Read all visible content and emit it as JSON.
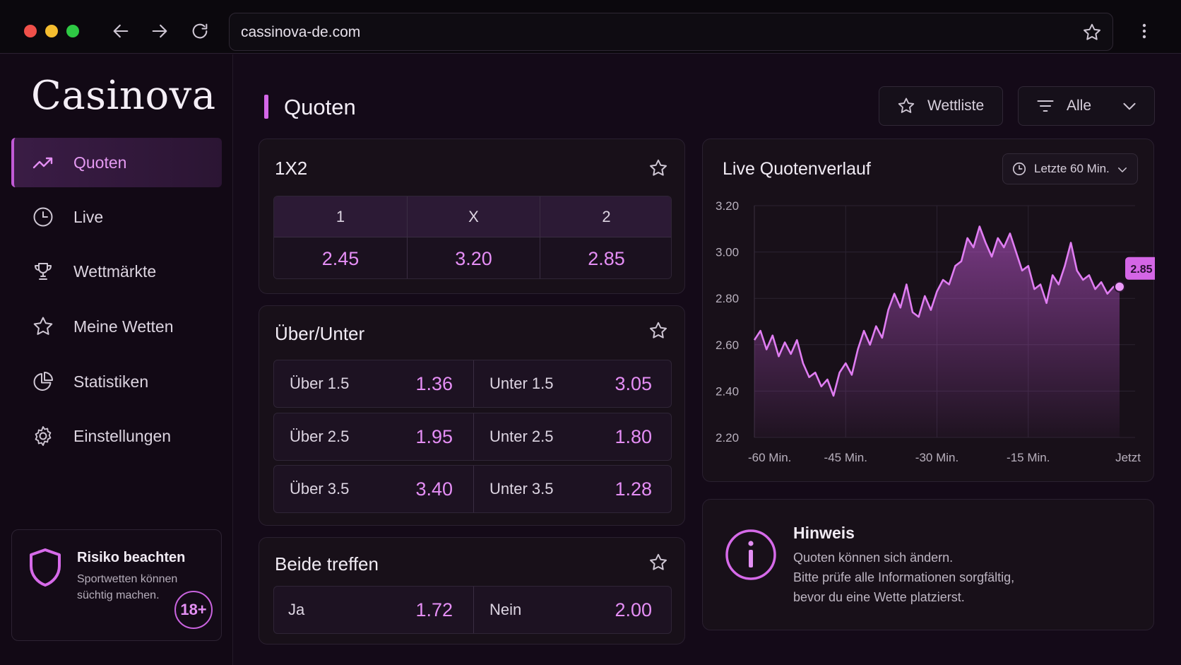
{
  "browser": {
    "url": "cassinova-de.com"
  },
  "sidebar": {
    "logo": "Casinova",
    "items": [
      {
        "label": "Quoten",
        "icon": "trending-up-icon",
        "active": true
      },
      {
        "label": "Live",
        "icon": "clock-icon",
        "active": false
      },
      {
        "label": "Wettmärkte",
        "icon": "trophy-icon",
        "active": false
      },
      {
        "label": "Meine Wetten",
        "icon": "star-icon",
        "active": false
      },
      {
        "label": "Statistiken",
        "icon": "pie-chart-icon",
        "active": false
      },
      {
        "label": "Einstellungen",
        "icon": "gear-icon",
        "active": false
      }
    ],
    "risk": {
      "title": "Risiko beachten",
      "text_line1": "Sportwetten können",
      "text_line2": "süchtig machen.",
      "age": "18+"
    }
  },
  "header": {
    "title": "Quoten",
    "watchlist_label": "Wettliste",
    "filter_label": "Alle"
  },
  "market_1x2": {
    "title": "1X2",
    "columns": [
      {
        "label": "1",
        "odd": "2.45"
      },
      {
        "label": "X",
        "odd": "3.20"
      },
      {
        "label": "2",
        "odd": "2.85"
      }
    ]
  },
  "market_ou": {
    "title": "Über/Unter",
    "rows": [
      {
        "over_label": "Über 1.5",
        "over_odd": "1.36",
        "under_label": "Unter 1.5",
        "under_odd": "3.05"
      },
      {
        "over_label": "Über 2.5",
        "over_odd": "1.95",
        "under_label": "Unter 2.5",
        "under_odd": "1.80"
      },
      {
        "over_label": "Über 3.5",
        "over_odd": "3.40",
        "under_label": "Unter 3.5",
        "under_odd": "1.28"
      }
    ]
  },
  "market_btts": {
    "title": "Beide treffen",
    "yes_label": "Ja",
    "yes_odd": "1.72",
    "no_label": "Nein",
    "no_odd": "2.00"
  },
  "chart": {
    "title": "Live Quotenverlauf",
    "range_label": "Letzte 60 Min.",
    "current_label": "2.85"
  },
  "chart_data": {
    "type": "area",
    "title": "Live Quotenverlauf",
    "x_ticks": [
      "-60 Min.",
      "-45 Min.",
      "-30 Min.",
      "-15 Min.",
      "Jetzt"
    ],
    "y_ticks": [
      "3.20",
      "3.00",
      "2.80",
      "2.60",
      "2.40",
      "2.20"
    ],
    "ylim": [
      2.2,
      3.2
    ],
    "xlim": [
      -60,
      0
    ],
    "grid": true,
    "x": [
      -60,
      -59,
      -58,
      -57,
      -56,
      -55,
      -54,
      -53,
      -52,
      -51,
      -50,
      -49,
      -48,
      -47,
      -46,
      -45,
      -44,
      -43,
      -42,
      -41,
      -40,
      -39,
      -38,
      -37,
      -36,
      -35,
      -34,
      -33,
      -32,
      -31,
      -30,
      -29,
      -28,
      -27,
      -26,
      -25,
      -24,
      -23,
      -22,
      -21,
      -20,
      -19,
      -18,
      -17,
      -16,
      -15,
      -14,
      -13,
      -12,
      -11,
      -10,
      -9,
      -8,
      -7,
      -6,
      -5,
      -4,
      -3,
      -2,
      -1,
      0
    ],
    "y": [
      2.62,
      2.66,
      2.58,
      2.64,
      2.55,
      2.61,
      2.56,
      2.62,
      2.52,
      2.46,
      2.48,
      2.42,
      2.45,
      2.38,
      2.48,
      2.52,
      2.47,
      2.58,
      2.66,
      2.6,
      2.68,
      2.63,
      2.75,
      2.82,
      2.76,
      2.86,
      2.74,
      2.72,
      2.81,
      2.75,
      2.83,
      2.88,
      2.86,
      2.94,
      2.96,
      3.06,
      3.02,
      3.11,
      3.04,
      2.98,
      3.06,
      3.02,
      3.08,
      3.0,
      2.92,
      2.94,
      2.84,
      2.86,
      2.78,
      2.9,
      2.86,
      2.94,
      3.04,
      2.92,
      2.88,
      2.9,
      2.84,
      2.87,
      2.82,
      2.85,
      2.85
    ],
    "series": [
      {
        "values_ref": "y"
      }
    ]
  },
  "hint": {
    "title": "Hinweis",
    "line1": "Quoten können sich ändern.",
    "line2": "Bitte prüfe alle Informationen sorgfältig,",
    "line3": "bevor du eine Wette platzierst."
  },
  "colors": {
    "accent": "#d467e8",
    "accent_soft": "#e58ef5",
    "background": "#140a18",
    "card": "#181019"
  }
}
